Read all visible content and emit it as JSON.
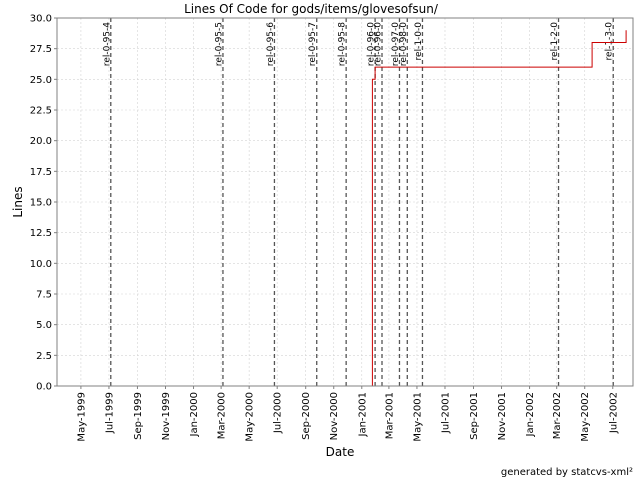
{
  "chart_data": {
    "type": "line",
    "title": "Lines Of Code for gods/items/glovesofsun/",
    "xlabel": "Date",
    "ylabel": "Lines",
    "x_range": [
      "1999-03-10",
      "2002-08-14"
    ],
    "ylim": [
      0,
      30
    ],
    "y_ticks": [
      "0.0",
      "2.5",
      "5.0",
      "7.5",
      "10.0",
      "12.5",
      "15.0",
      "17.5",
      "20.0",
      "22.5",
      "25.0",
      "27.5",
      "30.0"
    ],
    "y_tick_values": [
      0,
      2.5,
      5,
      7.5,
      10,
      12.5,
      15,
      17.5,
      20,
      22.5,
      25,
      27.5,
      30
    ],
    "x_ticks": [
      {
        "label": "May-1999",
        "date": "1999-05-01"
      },
      {
        "label": "Jul-1999",
        "date": "1999-07-01"
      },
      {
        "label": "Sep-1999",
        "date": "1999-09-01"
      },
      {
        "label": "Nov-1999",
        "date": "1999-11-01"
      },
      {
        "label": "Jan-2000",
        "date": "2000-01-01"
      },
      {
        "label": "Mar-2000",
        "date": "2000-03-01"
      },
      {
        "label": "May-2000",
        "date": "2000-05-01"
      },
      {
        "label": "Jul-2000",
        "date": "2000-07-01"
      },
      {
        "label": "Sep-2000",
        "date": "2000-09-01"
      },
      {
        "label": "Nov-2000",
        "date": "2000-11-01"
      },
      {
        "label": "Jan-2001",
        "date": "2001-01-01"
      },
      {
        "label": "Mar-2001",
        "date": "2001-03-01"
      },
      {
        "label": "May-2001",
        "date": "2001-05-01"
      },
      {
        "label": "Jul-2001",
        "date": "2001-07-01"
      },
      {
        "label": "Sep-2001",
        "date": "2001-09-01"
      },
      {
        "label": "Nov-2001",
        "date": "2001-11-01"
      },
      {
        "label": "Jan-2002",
        "date": "2002-01-01"
      },
      {
        "label": "Mar-2002",
        "date": "2002-03-01"
      },
      {
        "label": "May-2002",
        "date": "2002-05-01"
      },
      {
        "label": "Jul-2002",
        "date": "2002-07-01"
      }
    ],
    "grid": true,
    "series": [
      {
        "color": "#cc0000",
        "step": true,
        "points": [
          {
            "x": "1999-03-10",
            "y": 0
          },
          {
            "x": "2001-01-24",
            "y": 0
          },
          {
            "x": "2001-01-24",
            "y": 25
          },
          {
            "x": "2001-01-30",
            "y": 25
          },
          {
            "x": "2001-01-30",
            "y": 26
          },
          {
            "x": "2002-05-17",
            "y": 26
          },
          {
            "x": "2002-05-17",
            "y": 28
          },
          {
            "x": "2002-07-30",
            "y": 28
          },
          {
            "x": "2002-07-30",
            "y": 29
          }
        ]
      }
    ],
    "markers": [
      {
        "label": "rel-0-95-4",
        "date": "1999-07-05"
      },
      {
        "label": "rel-0-95-5",
        "date": "2000-03-05"
      },
      {
        "label": "rel-0-95-6",
        "date": "2000-06-25"
      },
      {
        "label": "rel-0-95-7",
        "date": "2000-09-25"
      },
      {
        "label": "rel-0-95-8",
        "date": "2000-11-28"
      },
      {
        "label": "rel-0-96-0",
        "date": "2001-01-30"
      },
      {
        "label": "rel-0-96-0",
        "date": "2001-02-14"
      },
      {
        "label": "rel-0-97-0",
        "date": "2001-03-24"
      },
      {
        "label": "rel-0-98-0",
        "date": "2001-04-10"
      },
      {
        "label": "rel-1-0-0",
        "date": "2001-05-13"
      },
      {
        "label": "rel-1-2-0",
        "date": "2002-03-05"
      },
      {
        "label": "rel-1-3-0",
        "date": "2002-07-02"
      }
    ]
  },
  "footer": {
    "credit": "generated by statcvs-xml²"
  }
}
